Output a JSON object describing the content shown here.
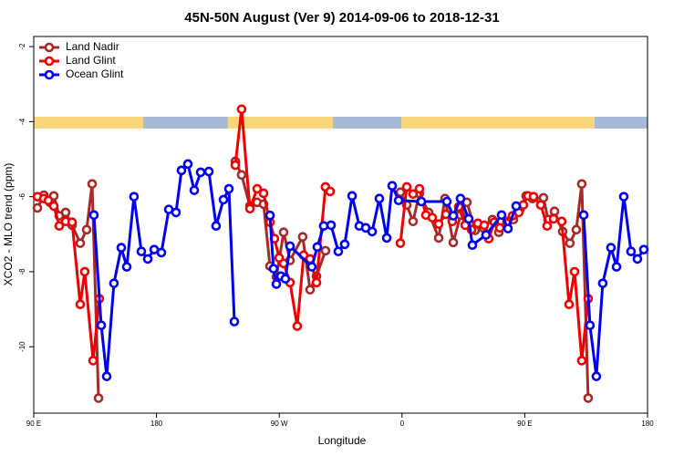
{
  "chart_data": {
    "type": "line",
    "title": "45N-50N August (Ver 9)   2014-09-06 to 2018-12-31",
    "x_label": "Longitude",
    "y_label": "XCO2 - MLO trend (ppm)",
    "xlim": [
      90,
      540
    ],
    "xticks": [
      {
        "value": 90,
        "label": "90 E"
      },
      180,
      {
        "value": 270,
        "label": "90 W"
      },
      {
        "value": 360,
        "label": "0"
      },
      {
        "value": 450,
        "label": "90 E"
      },
      {
        "value": 540,
        "label": "180"
      }
    ],
    "ylim": [
      -11.77,
      -1.73
    ],
    "yticks": [
      -2,
      -4,
      -6,
      -8,
      -10
    ],
    "legend": "top-left",
    "series": [
      {
        "name": "Land Nadir",
        "color": "#a52a2a",
        "x": [
          92.7,
          97.4,
          102.0,
          104.7,
          108.7,
          113.4,
          118.1,
          124.1,
          128.8,
          132.8,
          137.5,
          null,
          237.8,
          242.4,
          248.5,
          253.8,
          258.5,
          263.2,
          267.9,
          273.2,
          277.9,
          287.2,
          292.6,
          297.3,
          303.9,
          null,
          358.8,
          363.5,
          368.1,
          372.8,
          379.5,
          386.9,
          391.5,
          397.6,
          402.9,
          407.6,
          413.6,
          419.6,
          426.3,
          431.0,
          437.0,
          441.7,
          446.4,
          451.0,
          455.7,
          463.7,
          467.1,
          471.8,
          477.8,
          483.1,
          487.8,
          491.8,
          496.5
        ],
        "values": [
          -6.3,
          -5.96,
          -6.15,
          -5.98,
          -6.51,
          -6.42,
          -6.76,
          -7.24,
          -6.88,
          -5.66,
          -11.37,
          null,
          -5.06,
          -5.42,
          -6.25,
          -6.15,
          -6.2,
          -7.85,
          -8.14,
          -6.95,
          -7.7,
          -7.07,
          -8.48,
          -8.12,
          -7.44,
          null,
          -5.88,
          -6.22,
          -6.66,
          -5.91,
          -6.42,
          -7.1,
          -6.05,
          -7.22,
          -6.49,
          -6.15,
          -6.9,
          -6.83,
          -6.61,
          -6.95,
          -6.66,
          -6.61,
          -6.34,
          -5.98,
          -6.05,
          -6.03,
          -6.61,
          -6.39,
          -6.93,
          -7.24,
          -6.88,
          -5.66,
          -11.37
        ]
      },
      {
        "name": "Land Glint",
        "color": "#ee0000",
        "x": [
          92.7,
          97.4,
          100.7,
          104.7,
          108.7,
          113.4,
          118.1,
          124.1,
          127.4,
          133.5,
          138.1,
          null,
          237.8,
          242.4,
          248.5,
          253.8,
          258.5,
          263.2,
          266.5,
          269.9,
          273.2,
          277.9,
          283.2,
          287.9,
          292.6,
          297.3,
          303.9,
          307.3,
          null,
          358.8,
          363.5,
          368.1,
          372.8,
          377.5,
          382.2,
          386.9,
          392.2,
          396.9,
          401.6,
          406.3,
          411.0,
          415.6,
          420.3,
          423.6,
          427.6,
          431.7,
          437.0,
          441.0,
          445.7,
          449.0,
          452.4,
          456.4,
          461.7,
          466.4,
          471.1,
          477.1,
          482.5,
          486.5,
          491.8,
          496.5
        ],
        "values": [
          -6.0,
          -6.05,
          -6.1,
          -6.25,
          -6.78,
          -6.66,
          -6.68,
          -8.87,
          -8.0,
          -10.37,
          -8.72,
          null,
          -5.16,
          -3.67,
          -6.32,
          -5.79,
          -5.91,
          -6.68,
          -7.12,
          -7.63,
          -7.78,
          -8.29,
          -9.45,
          -7.56,
          -7.66,
          -8.29,
          -5.74,
          -5.86,
          null,
          -7.24,
          -5.74,
          -5.93,
          -5.79,
          -6.49,
          -6.56,
          -6.73,
          -6.47,
          -6.66,
          -6.27,
          -6.76,
          -6.88,
          -6.71,
          -6.76,
          -7.12,
          -6.68,
          -6.83,
          -6.71,
          -6.51,
          -6.42,
          -6.22,
          -5.98,
          -6.0,
          -6.22,
          -6.78,
          -6.59,
          -6.66,
          -8.87,
          -8.0,
          -10.37,
          -8.72
        ]
      },
      {
        "name": "Ocean Glint",
        "color": "#0000ee",
        "x": [
          134.1,
          139.5,
          143.5,
          148.8,
          154.2,
          158.2,
          163.5,
          168.9,
          173.6,
          178.3,
          183.6,
          189.0,
          194.3,
          198.3,
          203.0,
          207.7,
          212.4,
          218.4,
          223.7,
          229.1,
          233.1,
          237.1,
          null,
          263.2,
          265.8,
          267.9,
          271.2,
          274.5,
          277.9,
          293.9,
          297.9,
          302.6,
          308.0,
          313.3,
          318.0,
          323.4,
          328.7,
          333.4,
          338.1,
          343.4,
          348.8,
          352.8,
          357.5,
          374.2,
          392.9,
          397.6,
          402.9,
          408.9,
          411.6,
          421.6,
          433.0,
          437.7,
          443.7,
          null,
          493.2,
          497.8,
          502.5,
          507.2,
          513.2,
          517.3,
          522.6,
          527.9,
          532.6,
          537.3
        ],
        "values": [
          -6.49,
          -9.43,
          -10.79,
          -8.31,
          -7.36,
          -7.87,
          -6.0,
          -7.46,
          -7.66,
          -7.41,
          -7.49,
          -6.34,
          -6.42,
          -5.3,
          -5.13,
          -5.83,
          -5.35,
          -5.33,
          -6.78,
          -6.08,
          -5.79,
          -9.33,
          null,
          -6.5,
          -7.92,
          -8.33,
          -8.12,
          -8.19,
          -7.32,
          -7.87,
          -7.34,
          -6.78,
          -6.76,
          -7.46,
          -7.27,
          -5.98,
          -6.78,
          -6.83,
          -6.93,
          -6.05,
          -7.1,
          -5.71,
          -6.1,
          -6.13,
          -6.13,
          -6.51,
          -6.05,
          -6.59,
          -7.29,
          -7.02,
          -6.49,
          -6.85,
          -6.25,
          null,
          -6.49,
          -9.43,
          -10.79,
          -8.31,
          -7.36,
          -7.87,
          -6.0,
          -7.46,
          -7.66,
          -7.41
        ]
      }
    ]
  }
}
